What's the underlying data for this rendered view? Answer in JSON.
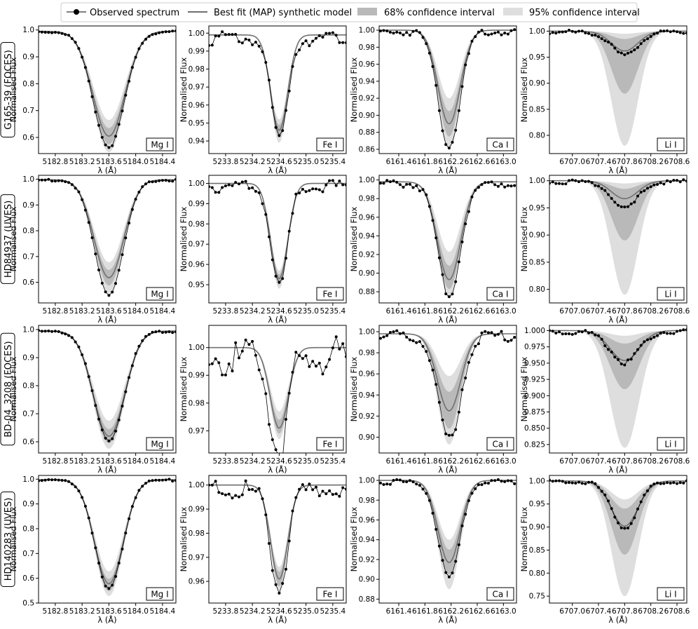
{
  "legend": {
    "observed": "Observed spectrum",
    "model": "Best fit (MAP) synthetic model",
    "ci68": "68% confidence interval",
    "ci95": "95% confidence interval"
  },
  "colors": {
    "observed": "#000000",
    "model": "#707070",
    "ci68": "#b9b9b9",
    "ci95": "#dedede"
  },
  "chart_data": [
    {
      "type": "line",
      "star": "G165-39 (FOCES)",
      "line_label": "Mg I",
      "xlabel": "λ (Å)",
      "ylabel": "Normalised Flux",
      "xlim": [
        5182.55,
        5184.6
      ],
      "ylim": [
        0.54,
        1.015
      ],
      "xticks": [
        5182.8,
        5183.2,
        5183.6,
        5184.0,
        5184.4
      ],
      "yticks": [
        0.6,
        0.7,
        0.8,
        0.9,
        1.0
      ],
      "ytick_decimals": 1,
      "profile": {
        "center": 5183.6,
        "fwhm": 0.56,
        "obs_depth": 0.43,
        "model_depth": 0.39,
        "ci68": [
          0.36,
          0.42
        ],
        "ci95": [
          0.33,
          0.45
        ],
        "cont": 0.995,
        "obs_spacing": 0.05,
        "noise": 0.002
      }
    },
    {
      "type": "line",
      "star": "G165-39 (FOCES)",
      "line_label": "Fe I",
      "xlabel": "λ (Å)",
      "ylabel": "Normalised Flux",
      "xlim": [
        5233.55,
        5235.6
      ],
      "ylim": [
        0.933,
        1.004
      ],
      "xticks": [
        5233.8,
        5234.2,
        5234.6,
        5235.0,
        5235.4
      ],
      "yticks": [
        0.94,
        0.95,
        0.96,
        0.97,
        0.98,
        0.99,
        1.0
      ],
      "ytick_decimals": 2,
      "profile": {
        "center": 5234.6,
        "fwhm": 0.3,
        "obs_depth": 0.056,
        "model_depth": 0.053,
        "ci68": [
          0.05,
          0.057
        ],
        "ci95": [
          0.047,
          0.06
        ],
        "cont": 0.999,
        "obs_spacing": 0.05,
        "noise": 0.002
      }
    },
    {
      "type": "line",
      "star": "G165-39 (FOCES)",
      "line_label": "Ca I",
      "xlabel": "λ (Å)",
      "ylabel": "Normalised Flux",
      "xlim": [
        6161.1,
        6163.2
      ],
      "ylim": [
        0.855,
        1.005
      ],
      "xticks": [
        6161.4,
        6161.8,
        6162.2,
        6162.6,
        6163.0
      ],
      "yticks": [
        0.86,
        0.88,
        0.9,
        0.92,
        0.94,
        0.96,
        0.98,
        1.0
      ],
      "ytick_decimals": 2,
      "profile": {
        "center": 6162.17,
        "fwhm": 0.4,
        "obs_depth": 0.135,
        "model_depth": 0.11,
        "ci68": [
          0.095,
          0.125
        ],
        "ci95": [
          0.08,
          0.14
        ],
        "cont": 1.0,
        "obs_spacing": 0.05,
        "noise": 0.002
      }
    },
    {
      "type": "line",
      "star": "G165-39 (FOCES)",
      "line_label": "Li I",
      "xlabel": "λ (Å)",
      "ylabel": "Normalised Flux",
      "xlim": [
        6706.65,
        6708.75
      ],
      "ylim": [
        0.765,
        1.01
      ],
      "xticks": [
        6707.0,
        6707.4,
        6707.8,
        6708.2,
        6708.6
      ],
      "yticks": [
        0.8,
        0.85,
        0.9,
        0.95,
        1.0
      ],
      "ytick_decimals": 2,
      "profile": {
        "center": 6707.8,
        "fwhm": 0.48,
        "obs_depth": 0.045,
        "model_depth": 0.038,
        "ci68": [
          0.015,
          0.12
        ],
        "ci95": [
          0.005,
          0.22
        ],
        "cont": 1.0,
        "obs_spacing": 0.05,
        "noise": 0.002
      }
    },
    {
      "type": "line",
      "star": "HD84937 (UVES)",
      "line_label": "Mg I",
      "xlabel": "λ (Å)",
      "ylabel": "Normalised Flux",
      "xlim": [
        5182.55,
        5184.6
      ],
      "ylim": [
        0.52,
        1.015
      ],
      "xticks": [
        5182.8,
        5183.2,
        5183.6,
        5184.0,
        5184.4
      ],
      "yticks": [
        0.6,
        0.7,
        0.8,
        0.9,
        1.0
      ],
      "ytick_decimals": 1,
      "profile": {
        "center": 5183.6,
        "fwhm": 0.52,
        "obs_depth": 0.445,
        "model_depth": 0.38,
        "ci68": [
          0.35,
          0.41
        ],
        "ci95": [
          0.32,
          0.44
        ],
        "cont": 0.998,
        "obs_spacing": 0.05,
        "noise": 0.002
      }
    },
    {
      "type": "line",
      "star": "HD84937 (UVES)",
      "line_label": "Fe I",
      "xlabel": "λ (Å)",
      "ylabel": "Normalised Flux",
      "xlim": [
        5233.55,
        5235.6
      ],
      "ylim": [
        0.941,
        1.004
      ],
      "xticks": [
        5233.8,
        5234.2,
        5234.6,
        5235.0,
        5235.4
      ],
      "yticks": [
        0.95,
        0.96,
        0.97,
        0.98,
        0.99,
        1.0
      ],
      "ytick_decimals": 2,
      "profile": {
        "center": 5234.6,
        "fwhm": 0.3,
        "obs_depth": 0.05,
        "model_depth": 0.047,
        "ci68": [
          0.045,
          0.05
        ],
        "ci95": [
          0.043,
          0.052
        ],
        "cont": 1.0,
        "obs_spacing": 0.05,
        "noise": 0.0015
      }
    },
    {
      "type": "line",
      "star": "HD84937 (UVES)",
      "line_label": "Ca I",
      "xlabel": "λ (Å)",
      "ylabel": "Normalised Flux",
      "xlim": [
        6161.1,
        6163.2
      ],
      "ylim": [
        0.868,
        1.005
      ],
      "xticks": [
        6161.4,
        6161.8,
        6162.2,
        6162.6,
        6163.0
      ],
      "yticks": [
        0.88,
        0.9,
        0.92,
        0.94,
        0.96,
        0.98,
        1.0
      ],
      "ytick_decimals": 2,
      "profile": {
        "center": 6162.17,
        "fwhm": 0.42,
        "obs_depth": 0.12,
        "model_depth": 0.105,
        "ci68": [
          0.09,
          0.115
        ],
        "ci95": [
          0.075,
          0.125
        ],
        "cont": 0.998,
        "obs_spacing": 0.05,
        "noise": 0.002
      }
    },
    {
      "type": "line",
      "star": "HD84937 (UVES)",
      "line_label": "Li I",
      "xlabel": "λ (Å)",
      "ylabel": "Normalised Flux",
      "xlim": [
        6706.65,
        6708.75
      ],
      "ylim": [
        0.775,
        1.01
      ],
      "xticks": [
        6707.0,
        6707.4,
        6707.8,
        6708.2,
        6708.6
      ],
      "yticks": [
        0.8,
        0.85,
        0.9,
        0.95,
        1.0
      ],
      "ytick_decimals": 2,
      "profile": {
        "center": 6707.8,
        "fwhm": 0.48,
        "obs_depth": 0.05,
        "model_depth": 0.033,
        "ci68": [
          0.015,
          0.11
        ],
        "ci95": [
          0.005,
          0.21
        ],
        "cont": 1.0,
        "obs_spacing": 0.05,
        "noise": 0.002
      }
    },
    {
      "type": "line",
      "star": "BD-04_3208 (FOCES)",
      "line_label": "Mg I",
      "xlabel": "λ (Å)",
      "ylabel": "Normalised Flux",
      "xlim": [
        5182.55,
        5184.6
      ],
      "ylim": [
        0.56,
        1.015
      ],
      "xticks": [
        5182.8,
        5183.2,
        5183.6,
        5184.0,
        5184.4
      ],
      "yticks": [
        0.6,
        0.7,
        0.8,
        0.9,
        1.0
      ],
      "ytick_decimals": 1,
      "profile": {
        "center": 5183.6,
        "fwhm": 0.55,
        "obs_depth": 0.39,
        "model_depth": 0.375,
        "ci68": [
          0.35,
          0.4
        ],
        "ci95": [
          0.32,
          0.42
        ],
        "cont": 0.995,
        "obs_spacing": 0.05,
        "noise": 0.002
      }
    },
    {
      "type": "line",
      "star": "BD-04_3208 (FOCES)",
      "line_label": "Fe I",
      "xlabel": "λ (Å)",
      "ylabel": "Normalised Flux",
      "xlim": [
        5233.55,
        5235.6
      ],
      "ylim": [
        0.962,
        1.008
      ],
      "xticks": [
        5233.8,
        5234.2,
        5234.6,
        5235.0,
        5235.4
      ],
      "yticks": [
        0.97,
        0.98,
        0.99,
        1.0
      ],
      "ytick_decimals": 2,
      "profile": {
        "center": 5234.6,
        "fwhm": 0.32,
        "obs_depth": 0.033,
        "model_depth": 0.029,
        "ci68": [
          0.026,
          0.031
        ],
        "ci95": [
          0.023,
          0.033
        ],
        "cont": 1.0,
        "obs_spacing": 0.05,
        "noise": 0.004
      }
    },
    {
      "type": "line",
      "star": "BD-04_3208 (FOCES)",
      "line_label": "Ca I",
      "xlabel": "λ (Å)",
      "ylabel": "Normalised Flux",
      "xlim": [
        6161.1,
        6163.2
      ],
      "ylim": [
        0.885,
        1.006
      ],
      "xticks": [
        6161.4,
        6161.8,
        6162.2,
        6162.6,
        6163.0
      ],
      "yticks": [
        0.9,
        0.92,
        0.94,
        0.96,
        0.98,
        1.0
      ],
      "ytick_decimals": 2,
      "profile": {
        "center": 6162.17,
        "fwhm": 0.42,
        "obs_depth": 0.097,
        "model_depth": 0.073,
        "ci68": [
          0.055,
          0.09
        ],
        "ci95": [
          0.04,
          0.105
        ],
        "cont": 0.998,
        "obs_spacing": 0.05,
        "noise": 0.003
      }
    },
    {
      "type": "line",
      "star": "BD-04_3208 (FOCES)",
      "line_label": "Li I",
      "xlabel": "λ (Å)",
      "ylabel": "Normalised Flux",
      "xlim": [
        6706.65,
        6708.75
      ],
      "ylim": [
        0.812,
        1.008
      ],
      "xticks": [
        6707.0,
        6707.4,
        6707.8,
        6708.2,
        6708.6
      ],
      "yticks": [
        0.825,
        0.85,
        0.875,
        0.9,
        0.925,
        0.95,
        0.975,
        1.0
      ],
      "ytick_decimals": 3,
      "profile": {
        "center": 6707.8,
        "fwhm": 0.52,
        "obs_depth": 0.047,
        "model_depth": 0.046,
        "ci68": [
          0.02,
          0.09
        ],
        "ci95": [
          0.008,
          0.18
        ],
        "cont": 1.0,
        "obs_spacing": 0.05,
        "noise": 0.002
      }
    },
    {
      "type": "line",
      "star": "HD140283 (UVES)",
      "line_label": "Mg I",
      "xlabel": "λ (Å)",
      "ylabel": "Normalised Flux",
      "xlim": [
        5182.55,
        5184.6
      ],
      "ylim": [
        0.5,
        1.015
      ],
      "xticks": [
        5182.8,
        5183.2,
        5183.6,
        5184.0,
        5184.4
      ],
      "yticks": [
        0.5,
        0.6,
        0.7,
        0.8,
        0.9,
        1.0
      ],
      "ytick_decimals": 1,
      "profile": {
        "center": 5183.6,
        "fwhm": 0.5,
        "obs_depth": 0.44,
        "model_depth": 0.42,
        "ci68": [
          0.4,
          0.45
        ],
        "ci95": [
          0.37,
          0.47
        ],
        "cont": 0.998,
        "obs_spacing": 0.05,
        "noise": 0.002
      }
    },
    {
      "type": "line",
      "star": "HD140283 (UVES)",
      "line_label": "Fe I",
      "xlabel": "λ (Å)",
      "ylabel": "Normalised Flux",
      "xlim": [
        5233.55,
        5235.6
      ],
      "ylim": [
        0.951,
        1.004
      ],
      "xticks": [
        5233.8,
        5234.2,
        5234.6,
        5235.0,
        5235.4
      ],
      "yticks": [
        0.96,
        0.97,
        0.98,
        0.99,
        1.0
      ],
      "ytick_decimals": 2,
      "profile": {
        "center": 5234.6,
        "fwhm": 0.3,
        "obs_depth": 0.041,
        "model_depth": 0.039,
        "ci68": [
          0.036,
          0.042
        ],
        "ci95": [
          0.034,
          0.044
        ],
        "cont": 1.0,
        "obs_spacing": 0.05,
        "noise": 0.002
      }
    },
    {
      "type": "line",
      "star": "HD140283 (UVES)",
      "line_label": "Ca I",
      "xlabel": "λ (Å)",
      "ylabel": "Normalised Flux",
      "xlim": [
        6161.1,
        6163.2
      ],
      "ylim": [
        0.876,
        1.005
      ],
      "xticks": [
        6161.4,
        6161.8,
        6162.2,
        6162.6,
        6163.0
      ],
      "yticks": [
        0.88,
        0.9,
        0.92,
        0.94,
        0.96,
        0.98,
        1.0
      ],
      "ytick_decimals": 2,
      "profile": {
        "center": 6162.17,
        "fwhm": 0.4,
        "obs_depth": 0.098,
        "model_depth": 0.083,
        "ci68": [
          0.07,
          0.095
        ],
        "ci95": [
          0.06,
          0.11
        ],
        "cont": 1.0,
        "obs_spacing": 0.05,
        "noise": 0.0015
      }
    },
    {
      "type": "line",
      "star": "HD140283 (UVES)",
      "line_label": "Li I",
      "xlabel": "λ (Å)",
      "ylabel": "Normalised Flux",
      "xlim": [
        6706.65,
        6708.75
      ],
      "ylim": [
        0.735,
        1.012
      ],
      "xticks": [
        6707.0,
        6707.4,
        6707.8,
        6708.2,
        6708.6
      ],
      "yticks": [
        0.75,
        0.8,
        0.85,
        0.9,
        0.95,
        1.0
      ],
      "ytick_decimals": 2,
      "profile": {
        "center": 6707.8,
        "fwhm": 0.48,
        "obs_depth": 0.1,
        "model_depth": 0.098,
        "ci68": [
          0.06,
          0.16
        ],
        "ci95": [
          0.04,
          0.25
        ],
        "cont": 1.0,
        "obs_spacing": 0.05,
        "noise": 0.002
      }
    }
  ]
}
